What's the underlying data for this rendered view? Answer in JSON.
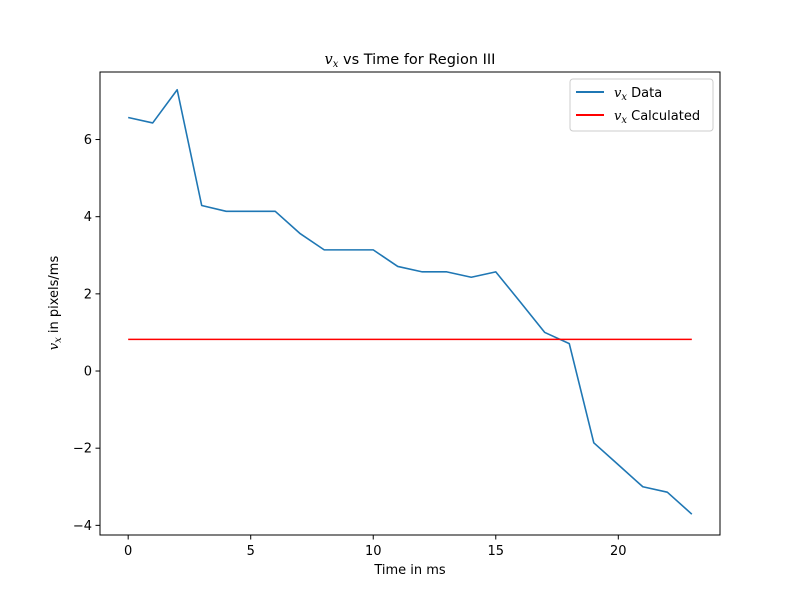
{
  "chart_data": {
    "type": "line",
    "title": {
      "var": "v",
      "sub": "x",
      "rest": " vs Time for Region III"
    },
    "xlabel": "Time in ms",
    "ylabel": {
      "var": "v",
      "sub": "x",
      "rest": " in pixels/ms"
    },
    "xlim": [
      -1.15,
      24.15
    ],
    "ylim": [
      -4.25,
      7.75
    ],
    "xticks": [
      0,
      5,
      10,
      15,
      20
    ],
    "xtick_labels": [
      "0",
      "5",
      "10",
      "15",
      "20"
    ],
    "yticks": [
      -4,
      -2,
      0,
      2,
      4,
      6
    ],
    "ytick_labels": [
      "−4",
      "−2",
      "0",
      "2",
      "4",
      "6"
    ],
    "grid": false,
    "legend_position": "top-right",
    "series": [
      {
        "name": {
          "var": "v",
          "sub": "x",
          "rest": " Data"
        },
        "color": "#1f77b4",
        "x": [
          0,
          1,
          2,
          3,
          4,
          5,
          6,
          7,
          8,
          9,
          10,
          11,
          12,
          13,
          14,
          15,
          16,
          17,
          18,
          19,
          20,
          21,
          22,
          23
        ],
        "y": [
          6.57,
          6.43,
          7.29,
          4.29,
          4.14,
          4.14,
          4.14,
          3.57,
          3.14,
          3.14,
          3.14,
          2.71,
          2.57,
          2.57,
          2.43,
          2.57,
          1.79,
          1.0,
          0.71,
          -1.86,
          -2.43,
          -3.0,
          -3.14,
          -3.71
        ]
      },
      {
        "name": {
          "var": "v",
          "sub": "x",
          "rest": " Calculated"
        },
        "color": "#ff0000",
        "x": [
          0,
          23
        ],
        "y": [
          0.82,
          0.82
        ]
      }
    ]
  }
}
